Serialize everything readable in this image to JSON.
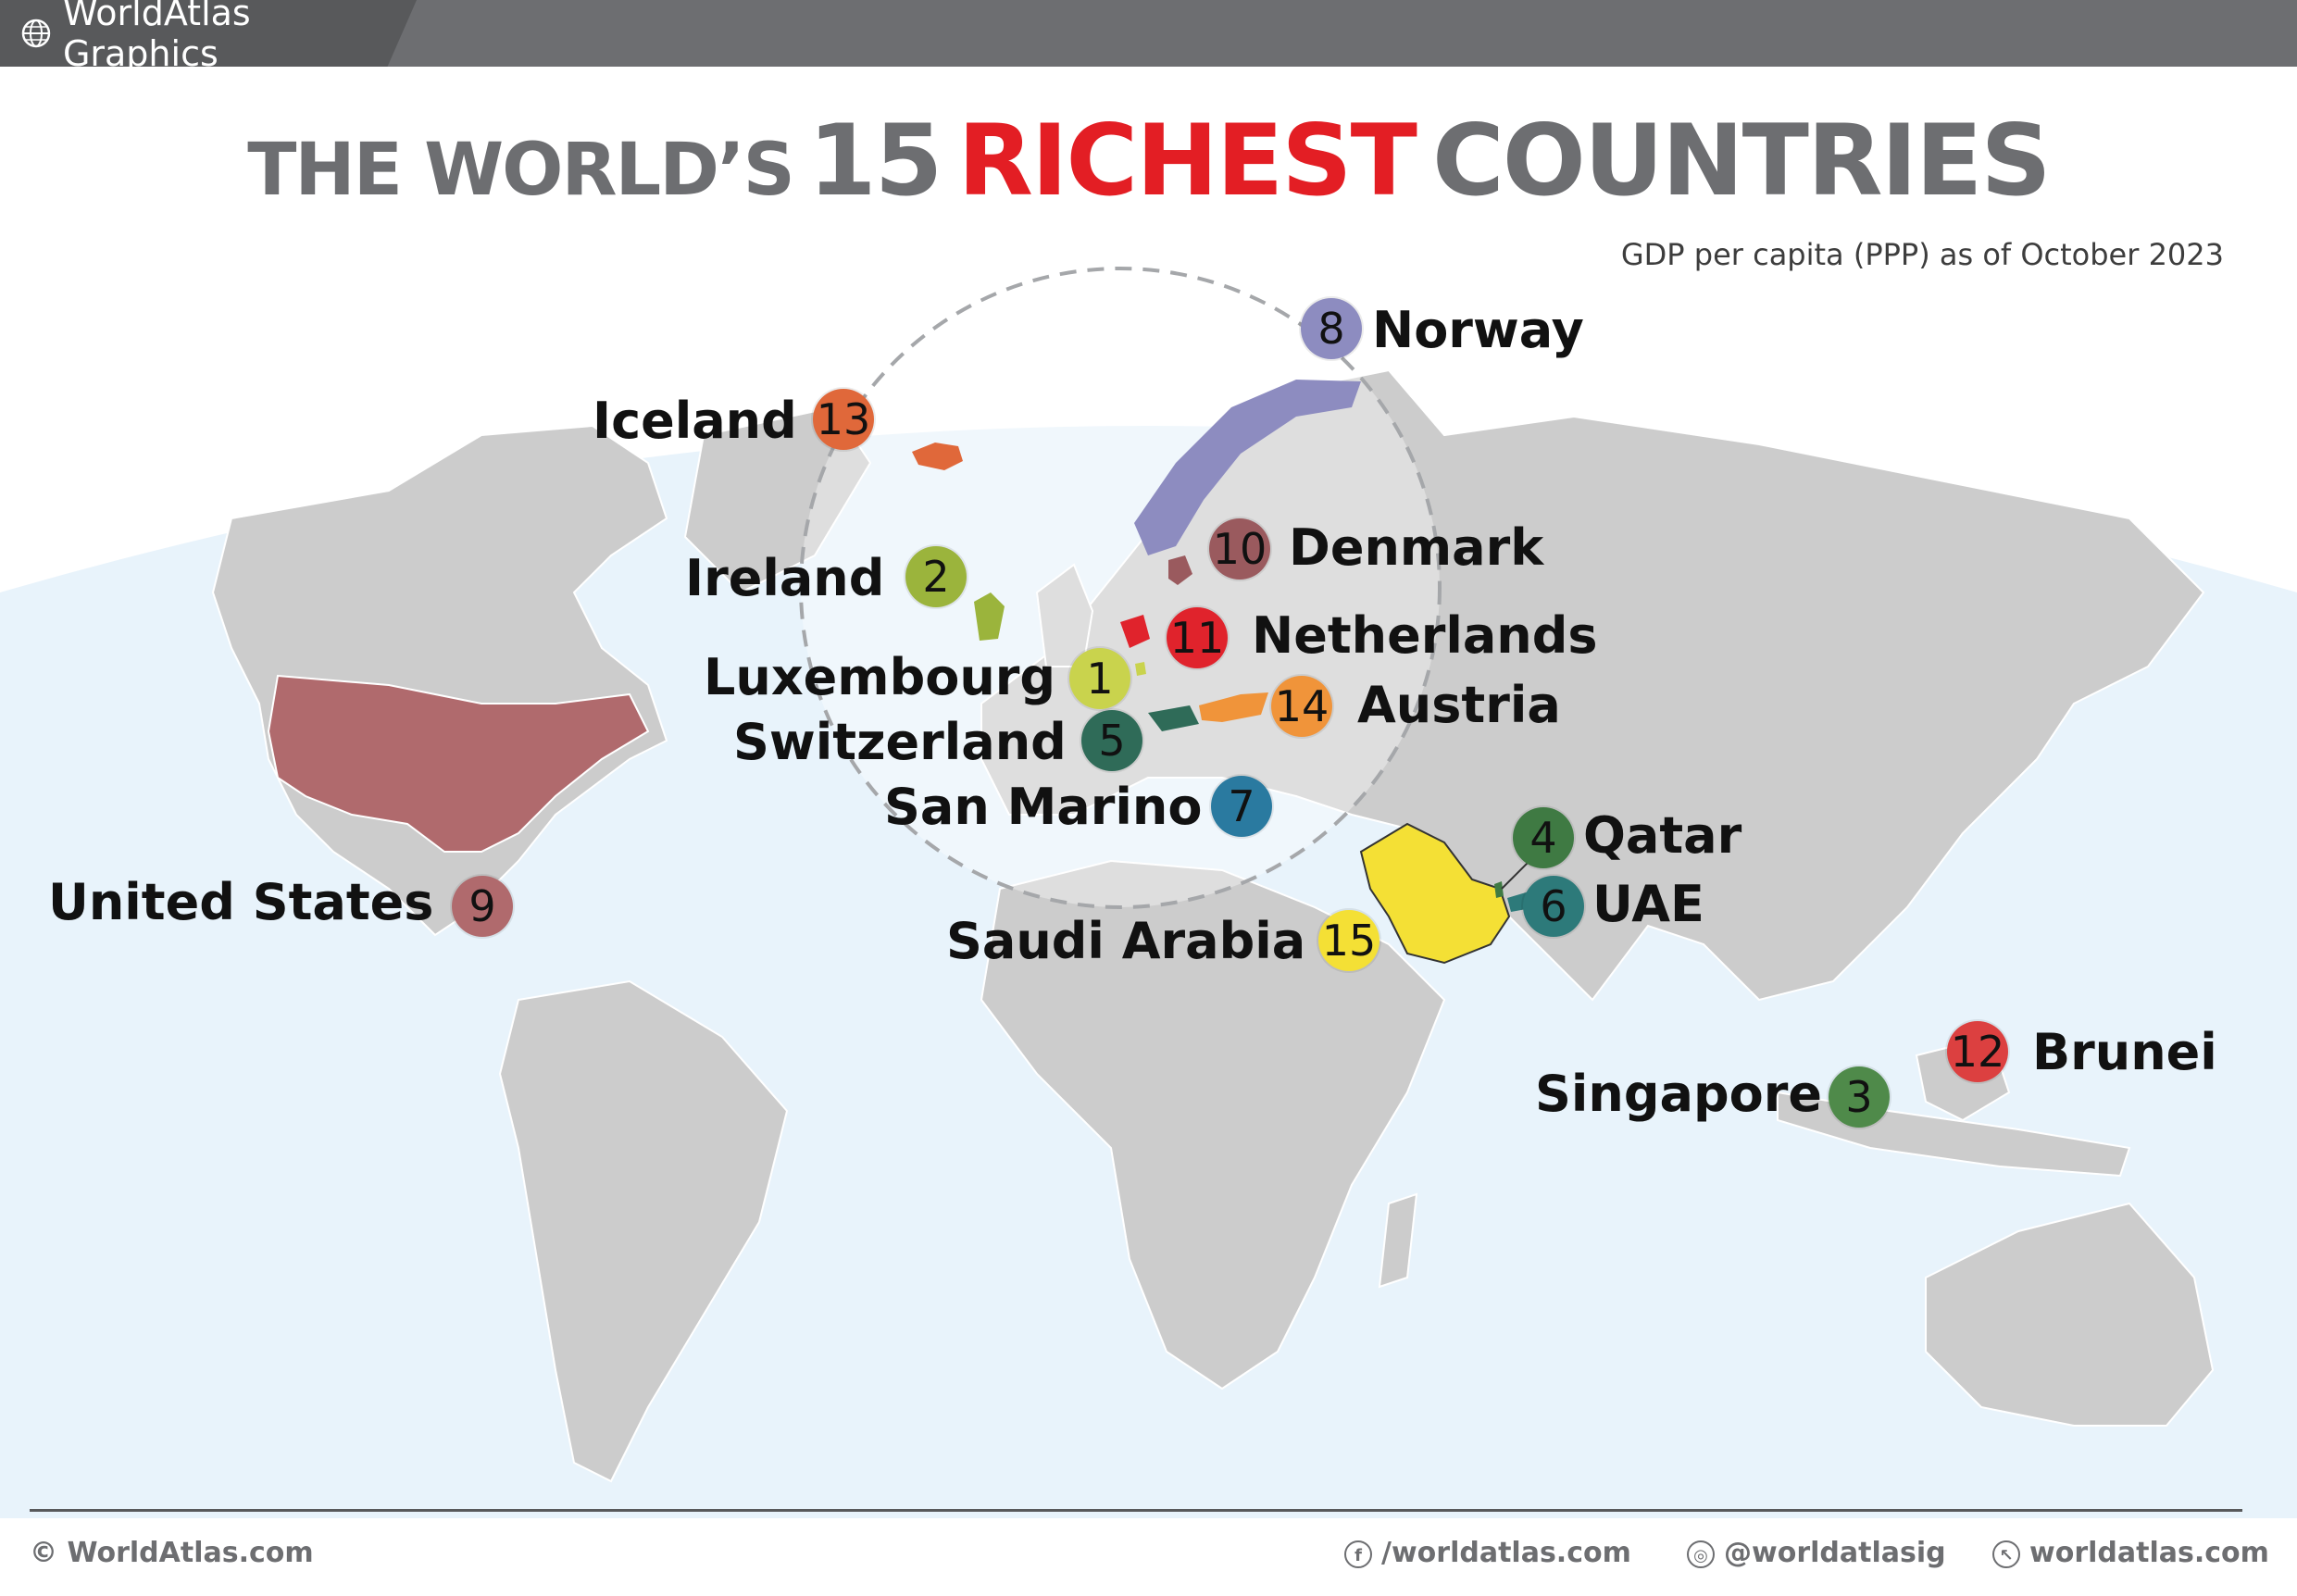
{
  "brand": {
    "name": "WorldAtlas Graphics",
    "icon": "globe-icon"
  },
  "title": {
    "part1": "THE WORLD’S",
    "part2": "15",
    "part3": "RICHEST",
    "part4": "COUNTRIES",
    "accent_color": "#e31e24",
    "gray_color": "#6d6e71"
  },
  "subtitle": "GDP per capita (PPP) as of October 2023",
  "rankings": [
    {
      "rank": "1",
      "country": "Luxembourg",
      "color": "#c9d34d"
    },
    {
      "rank": "2",
      "country": "Ireland",
      "color": "#9bb43c"
    },
    {
      "rank": "3",
      "country": "Singapore",
      "color": "#4f8a4a"
    },
    {
      "rank": "4",
      "country": "Qatar",
      "color": "#3f7a43"
    },
    {
      "rank": "5",
      "country": "Switzerland",
      "color": "#2f6b58"
    },
    {
      "rank": "6",
      "country": "UAE",
      "color": "#2d7a7a"
    },
    {
      "rank": "7",
      "country": "San Marino",
      "color": "#2a7aa0"
    },
    {
      "rank": "8",
      "country": "Norway",
      "color": "#8d8cc0"
    },
    {
      "rank": "9",
      "country": "United States",
      "color": "#b06a6d"
    },
    {
      "rank": "10",
      "country": "Denmark",
      "color": "#9a5a5e"
    },
    {
      "rank": "11",
      "country": "Netherlands",
      "color": "#e0232c"
    },
    {
      "rank": "12",
      "country": "Brunei",
      "color": "#dc4040"
    },
    {
      "rank": "13",
      "country": "Iceland",
      "color": "#e0683a"
    },
    {
      "rank": "14",
      "country": "Austria",
      "color": "#f0943a"
    },
    {
      "rank": "15",
      "country": "Saudi Arabia",
      "color": "#f4e035"
    }
  ],
  "footer": {
    "copyright": "© WorldAtlas.com",
    "facebook": "/worldatlas.com",
    "instagram": "@worldatlasig",
    "website": "worldatlas.com"
  }
}
